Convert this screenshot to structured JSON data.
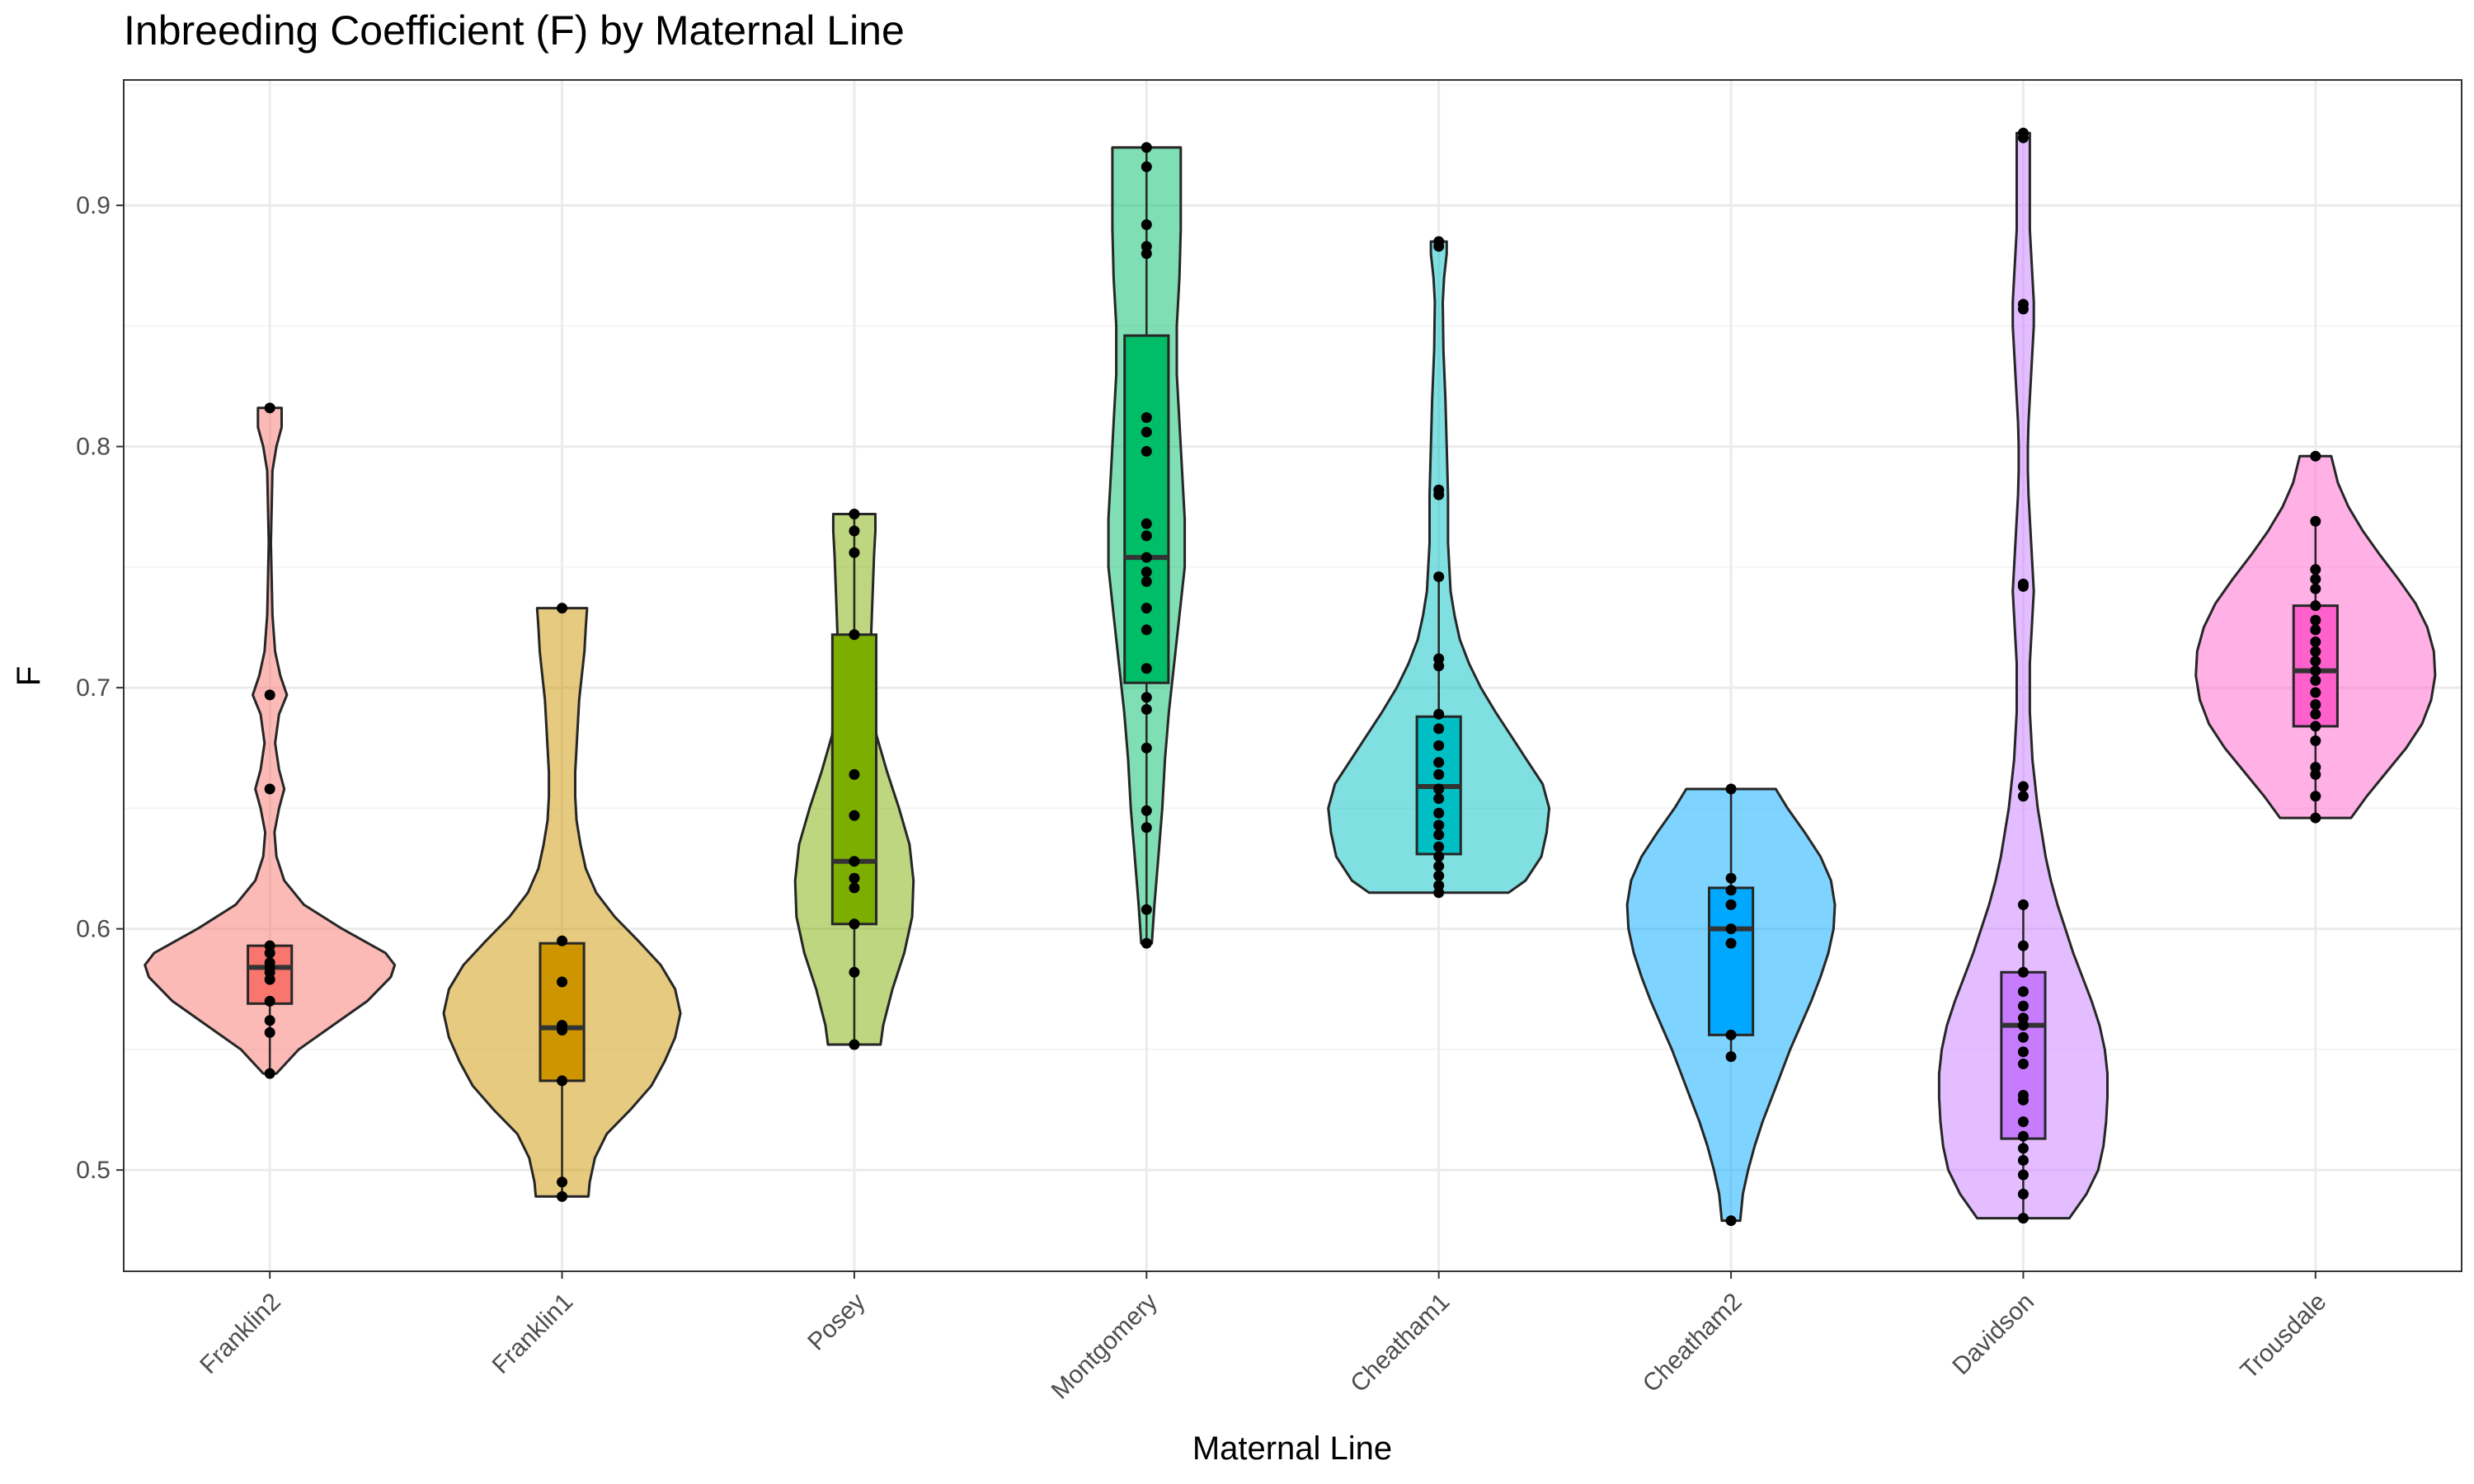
{
  "chart_data": {
    "type": "violin",
    "title": "Inbreeding Coefficient (F) by Maternal Line",
    "xlabel": "Maternal Line",
    "ylabel": "F",
    "ylim": [
      0.458,
      0.952
    ],
    "yticks": [
      0.5,
      0.6,
      0.7,
      0.8,
      0.9
    ],
    "ytick_labels": [
      "0.5",
      "0.6",
      "0.7",
      "0.8",
      "0.9"
    ],
    "grid": true,
    "legend": "none",
    "categories": [
      "Franklin2",
      "Franklin1",
      "Posey",
      "Montgomery",
      "Cheatham1",
      "Cheatham2",
      "Davidson",
      "Trousdale"
    ],
    "colors": [
      "#F8766D",
      "#CD9600",
      "#7CAE00",
      "#00BE67",
      "#00BFC4",
      "#00A9FF",
      "#C77CFF",
      "#FF61CC"
    ],
    "series": [
      {
        "category": "Franklin2",
        "box": {
          "q1": 0.569,
          "median": 0.584,
          "q3": 0.593,
          "whisker_low": 0.54,
          "whisker_high": 0.593
        },
        "density": [
          [
            0.54,
            0.05
          ],
          [
            0.55,
            0.22
          ],
          [
            0.56,
            0.48
          ],
          [
            0.57,
            0.74
          ],
          [
            0.58,
            0.92
          ],
          [
            0.585,
            0.95
          ],
          [
            0.59,
            0.88
          ],
          [
            0.6,
            0.55
          ],
          [
            0.61,
            0.26
          ],
          [
            0.62,
            0.11
          ],
          [
            0.63,
            0.05
          ],
          [
            0.64,
            0.035
          ],
          [
            0.65,
            0.07
          ],
          [
            0.658,
            0.11
          ],
          [
            0.666,
            0.07
          ],
          [
            0.677,
            0.04
          ],
          [
            0.689,
            0.07
          ],
          [
            0.697,
            0.13
          ],
          [
            0.705,
            0.08
          ],
          [
            0.715,
            0.04
          ],
          [
            0.73,
            0.02
          ],
          [
            0.76,
            0.008
          ],
          [
            0.79,
            0.02
          ],
          [
            0.8,
            0.05
          ],
          [
            0.808,
            0.09
          ],
          [
            0.816,
            0.09
          ]
        ],
        "points": [
          0.816,
          0.697,
          0.658,
          0.593,
          0.59,
          0.586,
          0.584,
          0.582,
          0.579,
          0.57,
          0.562,
          0.557,
          0.54
        ]
      },
      {
        "category": "Franklin1",
        "box": {
          "q1": 0.537,
          "median": 0.559,
          "q3": 0.594,
          "whisker_low": 0.489,
          "whisker_high": 0.594
        },
        "density": [
          [
            0.489,
            0.2
          ],
          [
            0.495,
            0.21
          ],
          [
            0.505,
            0.25
          ],
          [
            0.515,
            0.34
          ],
          [
            0.525,
            0.52
          ],
          [
            0.535,
            0.68
          ],
          [
            0.545,
            0.78
          ],
          [
            0.555,
            0.86
          ],
          [
            0.565,
            0.9
          ],
          [
            0.575,
            0.86
          ],
          [
            0.585,
            0.75
          ],
          [
            0.595,
            0.58
          ],
          [
            0.605,
            0.4
          ],
          [
            0.615,
            0.26
          ],
          [
            0.625,
            0.18
          ],
          [
            0.635,
            0.14
          ],
          [
            0.645,
            0.11
          ],
          [
            0.655,
            0.1
          ],
          [
            0.665,
            0.1
          ],
          [
            0.675,
            0.11
          ],
          [
            0.685,
            0.12
          ],
          [
            0.695,
            0.13
          ],
          [
            0.705,
            0.15
          ],
          [
            0.715,
            0.17
          ],
          [
            0.725,
            0.18
          ],
          [
            0.733,
            0.19
          ]
        ],
        "points": [
          0.733,
          0.595,
          0.578,
          0.56,
          0.558,
          0.537,
          0.495,
          0.489
        ]
      },
      {
        "category": "Posey",
        "box": {
          "q1": 0.602,
          "median": 0.628,
          "q3": 0.722,
          "whisker_low": 0.552,
          "whisker_high": 0.772
        },
        "density": [
          [
            0.552,
            0.2
          ],
          [
            0.56,
            0.22
          ],
          [
            0.575,
            0.29
          ],
          [
            0.59,
            0.38
          ],
          [
            0.605,
            0.44
          ],
          [
            0.62,
            0.45
          ],
          [
            0.635,
            0.42
          ],
          [
            0.65,
            0.34
          ],
          [
            0.665,
            0.25
          ],
          [
            0.68,
            0.17
          ],
          [
            0.695,
            0.13
          ],
          [
            0.71,
            0.12
          ],
          [
            0.725,
            0.13
          ],
          [
            0.74,
            0.14
          ],
          [
            0.755,
            0.15
          ],
          [
            0.765,
            0.16
          ],
          [
            0.772,
            0.16
          ]
        ],
        "points": [
          0.772,
          0.765,
          0.756,
          0.722,
          0.664,
          0.647,
          0.628,
          0.621,
          0.617,
          0.602,
          0.582,
          0.552
        ]
      },
      {
        "category": "Montgomery",
        "box": {
          "q1": 0.702,
          "median": 0.754,
          "q3": 0.846,
          "whisker_low": 0.594,
          "whisker_high": 0.924
        },
        "density": [
          [
            0.594,
            0.04
          ],
          [
            0.61,
            0.06
          ],
          [
            0.63,
            0.09
          ],
          [
            0.65,
            0.12
          ],
          [
            0.67,
            0.14
          ],
          [
            0.69,
            0.17
          ],
          [
            0.71,
            0.21
          ],
          [
            0.73,
            0.25
          ],
          [
            0.75,
            0.29
          ],
          [
            0.77,
            0.29
          ],
          [
            0.79,
            0.27
          ],
          [
            0.81,
            0.25
          ],
          [
            0.83,
            0.23
          ],
          [
            0.85,
            0.23
          ],
          [
            0.87,
            0.25
          ],
          [
            0.89,
            0.26
          ],
          [
            0.905,
            0.26
          ],
          [
            0.915,
            0.26
          ],
          [
            0.924,
            0.26
          ]
        ],
        "points": [
          0.924,
          0.916,
          0.892,
          0.883,
          0.88,
          0.812,
          0.806,
          0.798,
          0.768,
          0.763,
          0.754,
          0.748,
          0.744,
          0.733,
          0.724,
          0.708,
          0.696,
          0.691,
          0.675,
          0.649,
          0.642,
          0.608,
          0.594
        ]
      },
      {
        "category": "Cheatham1",
        "box": {
          "q1": 0.631,
          "median": 0.659,
          "q3": 0.688,
          "whisker_low": 0.615,
          "whisker_high": 0.746
        },
        "density": [
          [
            0.615,
            0.53
          ],
          [
            0.62,
            0.66
          ],
          [
            0.63,
            0.78
          ],
          [
            0.64,
            0.82
          ],
          [
            0.65,
            0.84
          ],
          [
            0.66,
            0.79
          ],
          [
            0.67,
            0.67
          ],
          [
            0.68,
            0.55
          ],
          [
            0.69,
            0.43
          ],
          [
            0.7,
            0.32
          ],
          [
            0.71,
            0.23
          ],
          [
            0.72,
            0.16
          ],
          [
            0.73,
            0.12
          ],
          [
            0.74,
            0.09
          ],
          [
            0.76,
            0.07
          ],
          [
            0.78,
            0.07
          ],
          [
            0.8,
            0.06
          ],
          [
            0.82,
            0.05
          ],
          [
            0.84,
            0.035
          ],
          [
            0.86,
            0.03
          ],
          [
            0.87,
            0.04
          ],
          [
            0.88,
            0.06
          ],
          [
            0.885,
            0.06
          ]
        ],
        "points": [
          0.885,
          0.883,
          0.782,
          0.78,
          0.746,
          0.712,
          0.709,
          0.689,
          0.683,
          0.676,
          0.669,
          0.664,
          0.658,
          0.654,
          0.648,
          0.643,
          0.639,
          0.634,
          0.63,
          0.626,
          0.622,
          0.618,
          0.615
        ]
      },
      {
        "category": "Cheatham2",
        "box": {
          "q1": 0.556,
          "median": 0.6,
          "q3": 0.617,
          "whisker_low": 0.547,
          "whisker_high": 0.658
        },
        "density": [
          [
            0.479,
            0.07
          ],
          [
            0.49,
            0.09
          ],
          [
            0.5,
            0.13
          ],
          [
            0.51,
            0.18
          ],
          [
            0.52,
            0.24
          ],
          [
            0.53,
            0.31
          ],
          [
            0.54,
            0.38
          ],
          [
            0.55,
            0.45
          ],
          [
            0.56,
            0.53
          ],
          [
            0.57,
            0.61
          ],
          [
            0.58,
            0.68
          ],
          [
            0.59,
            0.74
          ],
          [
            0.6,
            0.78
          ],
          [
            0.61,
            0.79
          ],
          [
            0.62,
            0.76
          ],
          [
            0.63,
            0.68
          ],
          [
            0.64,
            0.56
          ],
          [
            0.65,
            0.43
          ],
          [
            0.658,
            0.34
          ]
        ],
        "points": [
          0.658,
          0.621,
          0.616,
          0.61,
          0.6,
          0.594,
          0.556,
          0.547,
          0.479
        ]
      },
      {
        "category": "Davidson",
        "box": {
          "q1": 0.513,
          "median": 0.56,
          "q3": 0.582,
          "whisker_low": 0.48,
          "whisker_high": 0.61
        },
        "density": [
          [
            0.48,
            0.35
          ],
          [
            0.49,
            0.48
          ],
          [
            0.5,
            0.57
          ],
          [
            0.51,
            0.61
          ],
          [
            0.52,
            0.63
          ],
          [
            0.53,
            0.64
          ],
          [
            0.54,
            0.64
          ],
          [
            0.55,
            0.62
          ],
          [
            0.56,
            0.58
          ],
          [
            0.57,
            0.52
          ],
          [
            0.58,
            0.45
          ],
          [
            0.59,
            0.38
          ],
          [
            0.6,
            0.32
          ],
          [
            0.61,
            0.26
          ],
          [
            0.62,
            0.21
          ],
          [
            0.63,
            0.17
          ],
          [
            0.64,
            0.14
          ],
          [
            0.65,
            0.11
          ],
          [
            0.66,
            0.09
          ],
          [
            0.67,
            0.07
          ],
          [
            0.68,
            0.06
          ],
          [
            0.69,
            0.05
          ],
          [
            0.7,
            0.05
          ],
          [
            0.71,
            0.05
          ],
          [
            0.72,
            0.06
          ],
          [
            0.73,
            0.07
          ],
          [
            0.74,
            0.08
          ],
          [
            0.75,
            0.07
          ],
          [
            0.76,
            0.06
          ],
          [
            0.77,
            0.05
          ],
          [
            0.78,
            0.04
          ],
          [
            0.79,
            0.035
          ],
          [
            0.8,
            0.035
          ],
          [
            0.81,
            0.04
          ],
          [
            0.82,
            0.05
          ],
          [
            0.83,
            0.06
          ],
          [
            0.84,
            0.07
          ],
          [
            0.85,
            0.08
          ],
          [
            0.86,
            0.08
          ],
          [
            0.87,
            0.07
          ],
          [
            0.88,
            0.06
          ],
          [
            0.89,
            0.05
          ],
          [
            0.9,
            0.05
          ],
          [
            0.91,
            0.05
          ],
          [
            0.92,
            0.05
          ],
          [
            0.93,
            0.05
          ]
        ],
        "points": [
          0.93,
          0.928,
          0.859,
          0.857,
          0.743,
          0.742,
          0.659,
          0.655,
          0.61,
          0.593,
          0.582,
          0.574,
          0.568,
          0.563,
          0.56,
          0.555,
          0.549,
          0.544,
          0.531,
          0.529,
          0.52,
          0.514,
          0.509,
          0.504,
          0.498,
          0.49,
          0.48
        ]
      },
      {
        "category": "Trousdale",
        "box": {
          "q1": 0.684,
          "median": 0.707,
          "q3": 0.734,
          "whisker_low": 0.646,
          "whisker_high": 0.769
        },
        "density": [
          [
            0.646,
            0.27
          ],
          [
            0.655,
            0.39
          ],
          [
            0.665,
            0.54
          ],
          [
            0.675,
            0.69
          ],
          [
            0.685,
            0.81
          ],
          [
            0.695,
            0.88
          ],
          [
            0.705,
            0.91
          ],
          [
            0.715,
            0.9
          ],
          [
            0.725,
            0.85
          ],
          [
            0.735,
            0.76
          ],
          [
            0.745,
            0.63
          ],
          [
            0.755,
            0.49
          ],
          [
            0.765,
            0.36
          ],
          [
            0.775,
            0.25
          ],
          [
            0.785,
            0.17
          ],
          [
            0.796,
            0.12
          ]
        ],
        "points": [
          0.796,
          0.769,
          0.749,
          0.745,
          0.741,
          0.734,
          0.728,
          0.724,
          0.719,
          0.715,
          0.711,
          0.707,
          0.703,
          0.698,
          0.693,
          0.689,
          0.684,
          0.678,
          0.667,
          0.664,
          0.655,
          0.646
        ]
      }
    ]
  }
}
